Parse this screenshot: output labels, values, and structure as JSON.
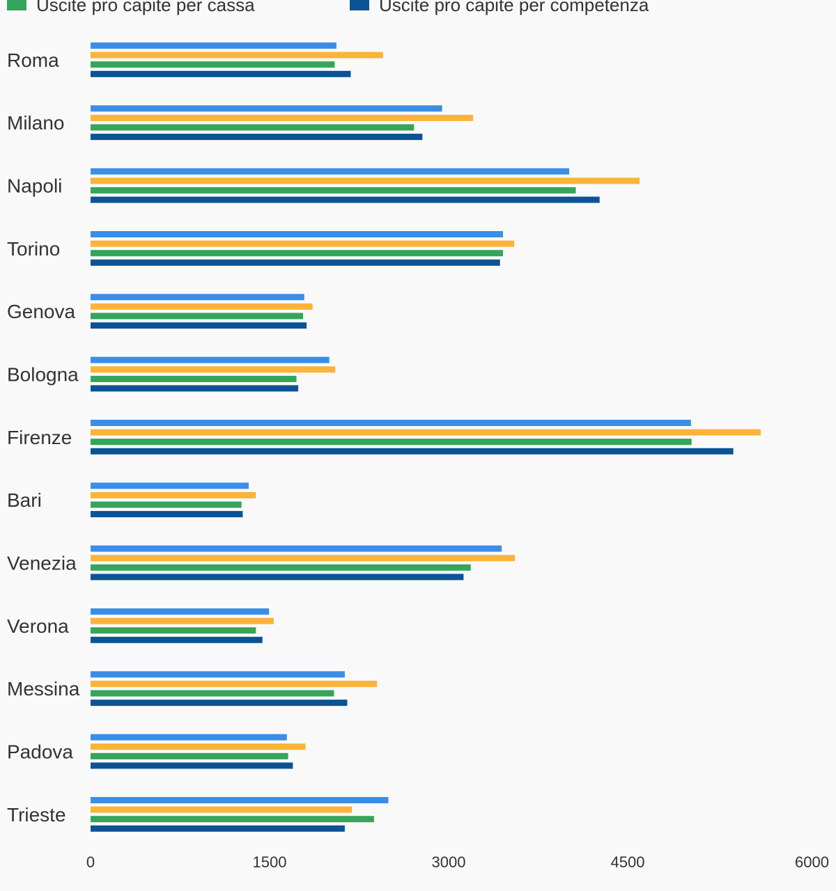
{
  "chart_data": {
    "type": "bar",
    "orientation": "horizontal",
    "categories": [
      "Roma",
      "Milano",
      "Napoli",
      "Torino",
      "Genova",
      "Bologna",
      "Firenze",
      "Bari",
      "Venezia",
      "Verona",
      "Messina",
      "Padova",
      "Trieste"
    ],
    "series": [
      {
        "color": "#3a8ee6",
        "values": [
          2060,
          2945,
          4010,
          3455,
          1790,
          2000,
          5030,
          1325,
          3445,
          1495,
          2130,
          1645,
          2495
        ]
      },
      {
        "color": "#fbb33a",
        "values": [
          2450,
          3205,
          4600,
          3550,
          1860,
          2050,
          5615,
          1385,
          3555,
          1535,
          2400,
          1800,
          2190
        ]
      },
      {
        "name": "Uscite pro capite per cassa",
        "color": "#34a55a",
        "values": [
          2045,
          2710,
          4065,
          3455,
          1780,
          1725,
          5035,
          1265,
          3185,
          1385,
          2040,
          1655,
          2375
        ]
      },
      {
        "name": "Uscite pro capite per competenza",
        "color": "#0b5394",
        "values": [
          2180,
          2780,
          4265,
          3430,
          1810,
          1740,
          5385,
          1275,
          3125,
          1440,
          2150,
          1695,
          2130
        ]
      }
    ],
    "legend": {
      "placement": "top",
      "visible_entries": [
        {
          "label": "Uscite pro capite per cassa",
          "color": "#34a55a"
        },
        {
          "label": "Uscite pro capite per competenza",
          "color": "#0b5394"
        }
      ]
    },
    "xlim": [
      0,
      6000
    ],
    "x_ticks": [
      0,
      1500,
      3000,
      4500,
      6000
    ],
    "x_tick_labels": [
      "0",
      "1500",
      "3000",
      "4500",
      "6000"
    ],
    "grid": false
  }
}
